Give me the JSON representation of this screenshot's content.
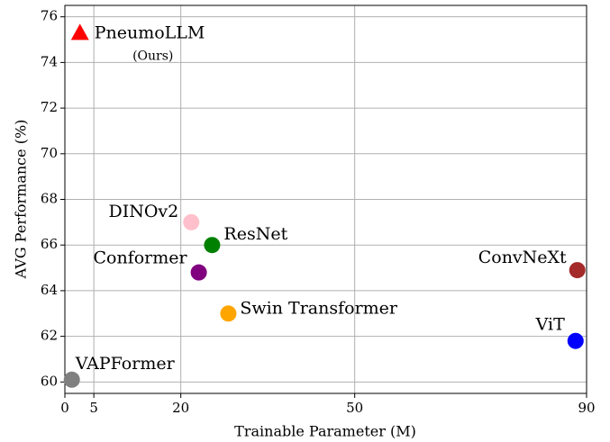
{
  "chart_data": {
    "type": "scatter",
    "xlabel": "Trainable Parameter (M)",
    "ylabel": "AVG Performance (%)",
    "annotation": "(Ours)",
    "xlim": [
      0,
      90
    ],
    "ylim": [
      59.5,
      76.5
    ],
    "xticks": [
      0,
      5,
      20,
      50,
      90
    ],
    "yticks": [
      60,
      62,
      64,
      66,
      68,
      70,
      72,
      74,
      76
    ],
    "grid": true,
    "series": [
      {
        "name": "PneumoLLM",
        "color": "#ff0000",
        "marker": "triangle",
        "x": [
          2.6
        ],
        "values": [
          75.3
        ]
      },
      {
        "name": "DINOv2",
        "color": "#ffc0cb",
        "marker": "circle",
        "x": [
          21.8
        ],
        "values": [
          67.0
        ]
      },
      {
        "name": "ResNet",
        "color": "#008000",
        "marker": "circle",
        "x": [
          25.4
        ],
        "values": [
          66.0
        ]
      },
      {
        "name": "Conformer",
        "color": "#800080",
        "marker": "circle",
        "x": [
          23.1
        ],
        "values": [
          64.8
        ]
      },
      {
        "name": "Swin Transformer",
        "color": "#ffa500",
        "marker": "circle",
        "x": [
          28.2
        ],
        "values": [
          63.0
        ]
      },
      {
        "name": "ConvNeXt",
        "color": "#a52a2a",
        "marker": "circle",
        "x": [
          88.4
        ],
        "values": [
          64.9
        ]
      },
      {
        "name": "ViT",
        "color": "#0000ff",
        "marker": "circle",
        "x": [
          88.1
        ],
        "values": [
          61.8
        ]
      },
      {
        "name": "VAPFormer",
        "color": "#808080",
        "marker": "circle",
        "x": [
          1.2
        ],
        "values": [
          60.1
        ]
      }
    ]
  }
}
